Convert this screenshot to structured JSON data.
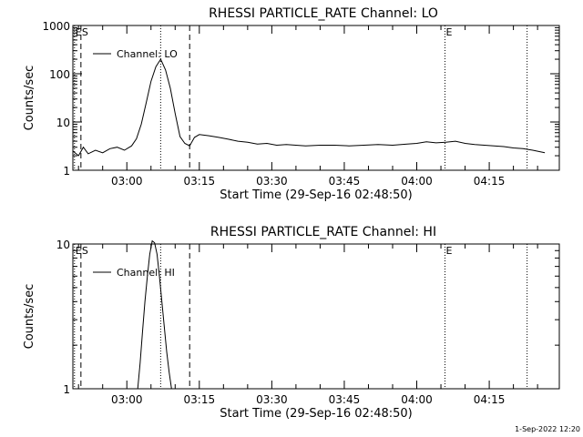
{
  "footer_timestamp": "1-Sep-2022 12:20",
  "chart_data": [
    {
      "type": "line",
      "title": "RHESSI PARTICLE_RATE Channel: LO",
      "xlabel": "Start Time (29-Sep-16 02:48:50)",
      "ylabel": "Counts/sec",
      "yscale": "log",
      "ylim": [
        1,
        1000
      ],
      "xlim": [
        "02:48:50",
        "04:29:30"
      ],
      "x_ticks": [
        "03:00",
        "03:15",
        "03:30",
        "03:45",
        "04:00",
        "04:15"
      ],
      "y_ticks": [
        "1",
        "10",
        "100",
        "1000"
      ],
      "legend": "Channel: LO",
      "markers": [
        {
          "label": "E",
          "time": "02:49:10",
          "style": "dotted"
        },
        {
          "label": "S",
          "time": "02:50:30",
          "style": "dashed"
        },
        {
          "label": "",
          "time": "03:07:00",
          "style": "dotted"
        },
        {
          "label": "",
          "time": "03:13:00",
          "style": "dashed"
        },
        {
          "label": "E",
          "time": "04:05:50",
          "style": "dotted"
        },
        {
          "label": "",
          "time": "04:22:50",
          "style": "dotted"
        }
      ],
      "series": [
        {
          "x": [
            "02:48:50",
            "02:50:00",
            "02:51:00",
            "02:52:00",
            "02:53:30",
            "02:55:00",
            "02:56:30",
            "02:58:00",
            "02:59:30",
            "03:01:00",
            "03:02:00",
            "03:03:00",
            "03:04:00",
            "03:05:00",
            "03:06:00",
            "03:07:00",
            "03:08:00",
            "03:09:00",
            "03:10:00",
            "03:11:00",
            "03:12:00",
            "03:13:00",
            "03:14:00",
            "03:15:00",
            "03:17:00",
            "03:19:00",
            "03:21:00",
            "03:23:00",
            "03:25:00",
            "03:27:00",
            "03:29:00",
            "03:31:00",
            "03:33:00",
            "03:35:00",
            "03:37:00",
            "03:40:00",
            "03:43:00",
            "03:46:00",
            "03:49:00",
            "03:52:00",
            "03:55:00",
            "03:58:00",
            "04:00:00",
            "04:02:00",
            "04:04:00",
            "04:06:00",
            "04:08:00",
            "04:10:00",
            "04:12:00",
            "04:14:00",
            "04:16:00",
            "04:18:00",
            "04:20:00",
            "04:22:00",
            "04:24:00",
            "04:26:30"
          ],
          "values": [
            2.5,
            2.0,
            3.0,
            2.2,
            2.6,
            2.3,
            2.8,
            3.0,
            2.6,
            3.2,
            4.5,
            9.0,
            25,
            70,
            140,
            200,
            120,
            50,
            15,
            5,
            3.6,
            3.2,
            4.8,
            5.5,
            5.2,
            4.8,
            4.4,
            4.0,
            3.8,
            3.5,
            3.6,
            3.3,
            3.4,
            3.3,
            3.2,
            3.3,
            3.3,
            3.2,
            3.3,
            3.4,
            3.3,
            3.5,
            3.6,
            3.9,
            3.7,
            3.8,
            4.0,
            3.6,
            3.4,
            3.3,
            3.2,
            3.1,
            2.9,
            2.8,
            2.6,
            2.3
          ]
        }
      ]
    },
    {
      "type": "line",
      "title": "RHESSI PARTICLE_RATE Channel: HI",
      "xlabel": "Start Time (29-Sep-16 02:48:50)",
      "ylabel": "Counts/sec",
      "yscale": "log",
      "ylim": [
        1,
        10
      ],
      "xlim": [
        "02:48:50",
        "04:29:30"
      ],
      "x_ticks": [
        "03:00",
        "03:15",
        "03:30",
        "03:45",
        "04:00",
        "04:15"
      ],
      "y_ticks": [
        "1",
        "10"
      ],
      "legend": "Channel: HI",
      "markers": [
        {
          "label": "E",
          "time": "02:49:10",
          "style": "dotted"
        },
        {
          "label": "S",
          "time": "02:50:30",
          "style": "dashed"
        },
        {
          "label": "",
          "time": "03:07:00",
          "style": "dotted"
        },
        {
          "label": "",
          "time": "03:13:00",
          "style": "dashed"
        },
        {
          "label": "E",
          "time": "04:05:50",
          "style": "dotted"
        },
        {
          "label": "",
          "time": "04:22:50",
          "style": "dotted"
        }
      ],
      "series": [
        {
          "x": [
            "03:02:15",
            "03:02:45",
            "03:03:15",
            "03:03:45",
            "03:04:15",
            "03:04:45",
            "03:05:15",
            "03:05:45",
            "03:06:15",
            "03:06:45",
            "03:07:15",
            "03:07:45",
            "03:08:15",
            "03:08:45",
            "03:09:15"
          ],
          "values": [
            1.0,
            1.5,
            2.5,
            4.0,
            6.0,
            8.5,
            10.5,
            10.2,
            8.5,
            6.0,
            4.0,
            2.7,
            1.8,
            1.3,
            1.0
          ]
        }
      ]
    }
  ]
}
